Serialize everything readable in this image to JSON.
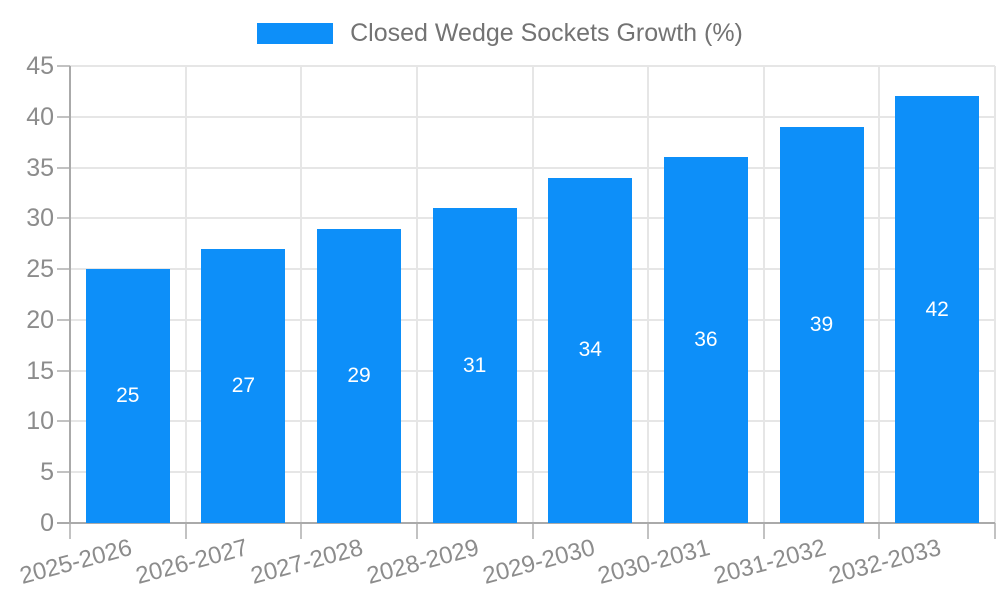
{
  "chart_data": {
    "type": "bar",
    "title": "Closed Wedge Sockets Growth (%)",
    "legend": {
      "label": "Closed Wedge Sockets Growth (%)",
      "position": "top-center"
    },
    "categories": [
      "2025-2026",
      "2026-2027",
      "2027-2028",
      "2028-2029",
      "2029-2030",
      "2030-2031",
      "2031-2032",
      "2032-2033"
    ],
    "values": [
      25,
      27,
      29,
      31,
      34,
      36,
      39,
      42
    ],
    "bar_value_labels": [
      "25",
      "27",
      "29",
      "31",
      "34",
      "36",
      "39",
      "42"
    ],
    "xlabel": "",
    "ylabel": "",
    "ylim": [
      0,
      45
    ],
    "yticks": [
      0,
      5,
      10,
      15,
      20,
      25,
      30,
      35,
      40,
      45
    ],
    "ytick_labels": [
      "0",
      "5",
      "10",
      "15",
      "20",
      "25",
      "30",
      "35",
      "40",
      "45"
    ],
    "grid": true,
    "x_label_rotation_deg": -15,
    "colors": {
      "bar": "#0d8ff9",
      "bar_value_label": "#ffffff",
      "grid_line": "#e6e6e6",
      "axis_line": "#aaaaaa",
      "tick_mark": "#c2c2c2",
      "tick_label": "#8c8c8c",
      "legend_text": "#737373",
      "background": "#ffffff"
    }
  }
}
